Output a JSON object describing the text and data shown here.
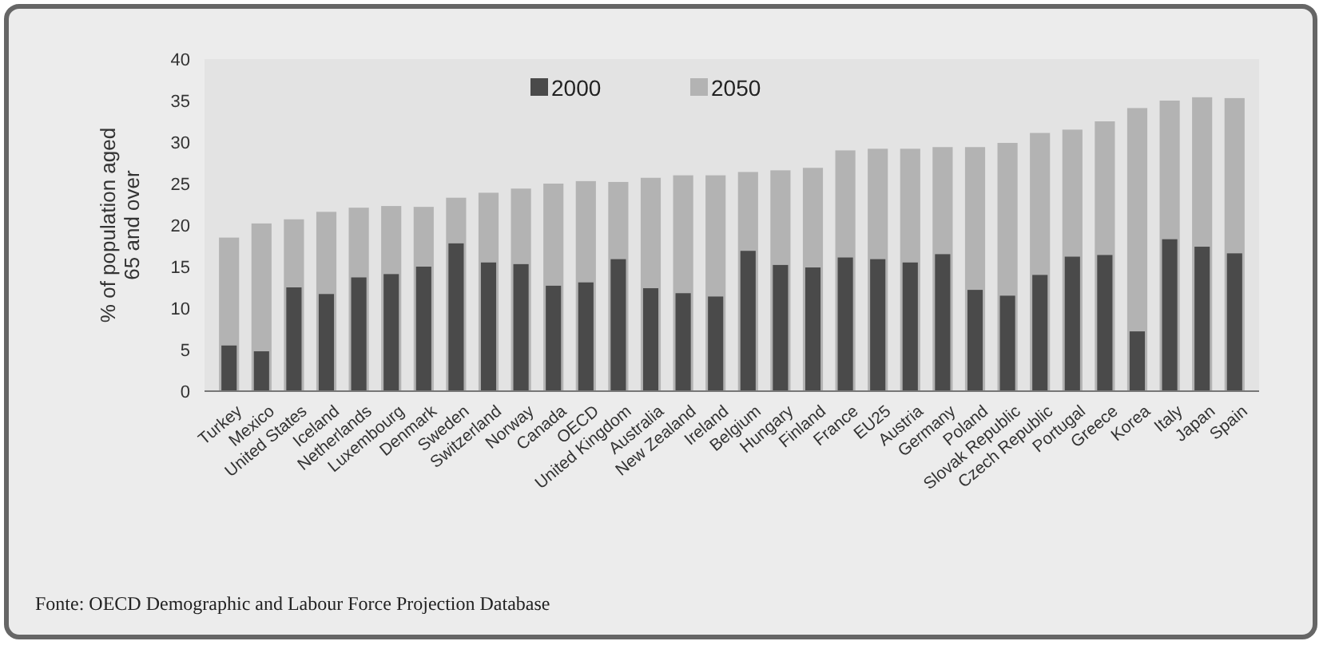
{
  "chart_data": {
    "type": "bar",
    "ylabel": "% of population aged 65 and over",
    "categories": [
      "Turkey",
      "Mexico",
      "United States",
      "Iceland",
      "Netherlands",
      "Luxembourg",
      "Denmark",
      "Sweden",
      "Switzerland",
      "Norway",
      "Canada",
      "OECD",
      "United Kingdom",
      "Australia",
      "New Zealand",
      "Ireland",
      "Belgium",
      "Hungary",
      "Finland",
      "France",
      "EU25",
      "Austria",
      "Germany",
      "Poland",
      "Slovak Republic",
      "Czech Republic",
      "Portugal",
      "Greece",
      "Korea",
      "Italy",
      "Japan",
      "Spain"
    ],
    "series": [
      {
        "name": "2050",
        "color": "#b3b3b3",
        "values": [
          18.5,
          20.2,
          20.7,
          21.6,
          22.1,
          22.3,
          22.2,
          23.3,
          23.9,
          24.4,
          25.0,
          25.3,
          25.2,
          25.7,
          26.0,
          26.0,
          26.4,
          26.6,
          26.9,
          29.0,
          29.2,
          29.2,
          29.4,
          29.4,
          29.9,
          31.1,
          31.5,
          32.5,
          34.1,
          35.0,
          35.4,
          35.3
        ]
      },
      {
        "name": "2000",
        "color": "#4a4a4a",
        "values": [
          5.5,
          4.8,
          12.5,
          11.7,
          13.7,
          14.1,
          15.0,
          17.8,
          15.5,
          15.3,
          12.7,
          13.1,
          15.9,
          12.4,
          11.8,
          11.4,
          16.9,
          15.2,
          14.9,
          16.1,
          15.9,
          15.5,
          16.5,
          12.2,
          11.5,
          14.0,
          16.2,
          16.4,
          7.2,
          18.3,
          17.4,
          16.6
        ]
      }
    ],
    "ylim": [
      0,
      40
    ],
    "yticks": [
      0,
      5,
      10,
      15,
      20,
      25,
      30,
      35,
      40
    ],
    "legend": "top",
    "annotations": [
      "Fonte: OECD Demographic and Labour Force Projection Database"
    ]
  }
}
